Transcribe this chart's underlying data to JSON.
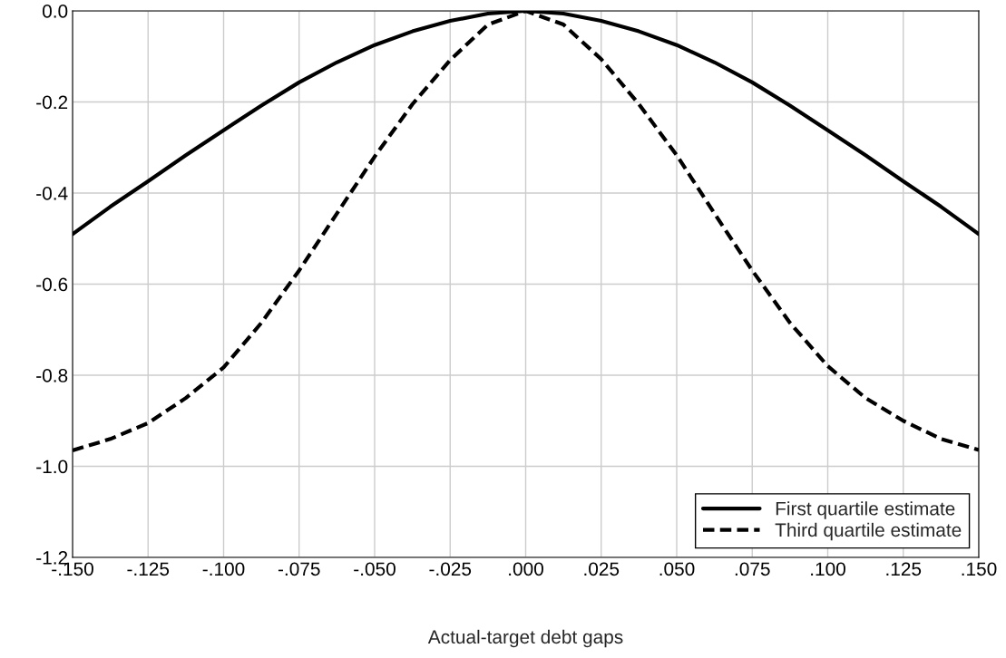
{
  "chart_data": {
    "type": "line",
    "xlabel": "Actual-target debt gaps",
    "x": [
      -0.15,
      -0.1375,
      -0.125,
      -0.1125,
      -0.1,
      -0.0875,
      -0.075,
      -0.0625,
      -0.05,
      -0.0375,
      -0.025,
      -0.0125,
      0,
      0.0125,
      0.025,
      0.0375,
      0.05,
      0.0625,
      0.075,
      0.0875,
      0.1,
      0.1125,
      0.125,
      0.1375,
      0.15
    ],
    "series": [
      {
        "name": "First quartile estimate",
        "color": "#000000",
        "line_style": "solid",
        "values": [
          -0.49,
          -0.43,
          -0.374,
          -0.317,
          -0.262,
          -0.208,
          -0.157,
          -0.113,
          -0.075,
          -0.045,
          -0.022,
          -0.006,
          0,
          -0.006,
          -0.022,
          -0.045,
          -0.075,
          -0.113,
          -0.157,
          -0.208,
          -0.262,
          -0.317,
          -0.374,
          -0.43,
          -0.49
        ]
      },
      {
        "name": "Third quartile estimate",
        "color": "#000000",
        "line_style": "dashed",
        "values": [
          -0.965,
          -0.94,
          -0.905,
          -0.85,
          -0.783,
          -0.685,
          -0.57,
          -0.445,
          -0.32,
          -0.205,
          -0.108,
          -0.03,
          0,
          -0.03,
          -0.106,
          -0.205,
          -0.317,
          -0.445,
          -0.57,
          -0.685,
          -0.78,
          -0.85,
          -0.9,
          -0.94,
          -0.964
        ]
      }
    ],
    "xlim": [
      -0.15,
      0.15
    ],
    "xticks": [
      {
        "value": -0.15,
        "label": "-.150"
      },
      {
        "value": -0.125,
        "label": "-.125"
      },
      {
        "value": -0.1,
        "label": "-.100"
      },
      {
        "value": -0.075,
        "label": "-.075"
      },
      {
        "value": -0.05,
        "label": "-.050"
      },
      {
        "value": -0.025,
        "label": "-.025"
      },
      {
        "value": 0,
        "label": ".000"
      },
      {
        "value": 0.025,
        "label": ".025"
      },
      {
        "value": 0.05,
        "label": ".050"
      },
      {
        "value": 0.075,
        "label": ".075"
      },
      {
        "value": 0.1,
        "label": ".100"
      },
      {
        "value": 0.125,
        "label": ".125"
      },
      {
        "value": 0.15,
        "label": ".150"
      }
    ],
    "ylim": [
      -1.2,
      0
    ],
    "yticks": [
      {
        "value": -1.2,
        "label": "-1.2"
      },
      {
        "value": -1.0,
        "label": "-1.0"
      },
      {
        "value": -0.8,
        "label": "-0.8"
      },
      {
        "value": -0.6,
        "label": "-0.6"
      },
      {
        "value": -0.4,
        "label": "-0.4"
      },
      {
        "value": -0.2,
        "label": "-0.2"
      },
      {
        "value": 0,
        "label": "0.0"
      }
    ],
    "grid": true,
    "legend": "bottom right"
  }
}
